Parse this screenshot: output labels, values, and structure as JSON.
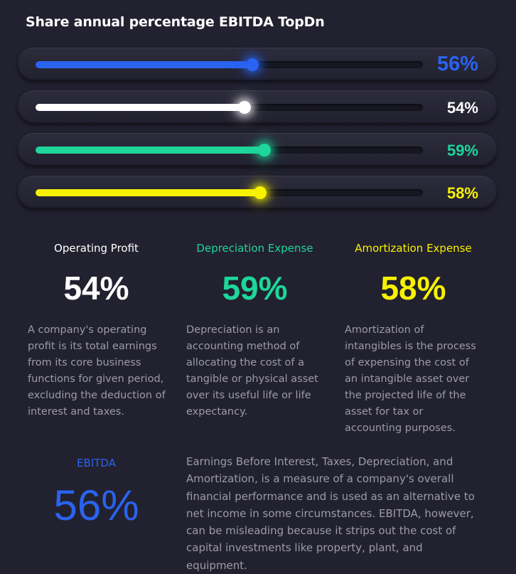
{
  "title": "Share annual percentage EBITDA TopDn",
  "colors": {
    "background": "#22212f",
    "blue": "#2a63f0",
    "white": "#ffffff",
    "green": "#1ed69a",
    "yellow": "#f7f201",
    "description_text": "#9c9ba6"
  },
  "bars": [
    {
      "value": 56,
      "label": "56%",
      "color": "#2a63f0"
    },
    {
      "value": 54,
      "label": "54%",
      "color": "#ffffff"
    },
    {
      "value": 59,
      "label": "59%",
      "color": "#1ed69a"
    },
    {
      "value": 58,
      "label": "58%",
      "color": "#f7f201"
    }
  ],
  "metrics": [
    {
      "label": "Operating Profit",
      "value": "54%",
      "description": "A company's operating profit is its total earnings from its core business functions for given period, excluding the deduction of interest and taxes."
    },
    {
      "label": "Depreciation Expense",
      "value": "59%",
      "description": "Depreciation is an accounting method of allocating the cost of a tangible or physical asset over its useful life or life expectancy."
    },
    {
      "label": "Amortization Expense",
      "value": "58%",
      "description": "Amortization of intangibles is the process of expensing the cost of an intangible asset over the projected life of the asset for tax or accounting purposes."
    }
  ],
  "ebitda": {
    "label": "EBITDA",
    "value": "56%",
    "description": "Earnings Before Interest, Taxes, Depreciation, and Amortization, is a measure of a company's overall financial performance and is used as an alternative to net income in some circumstances. EBITDA, however, can be misleading because it strips out the cost of capital investments like property, plant, and equipment."
  }
}
